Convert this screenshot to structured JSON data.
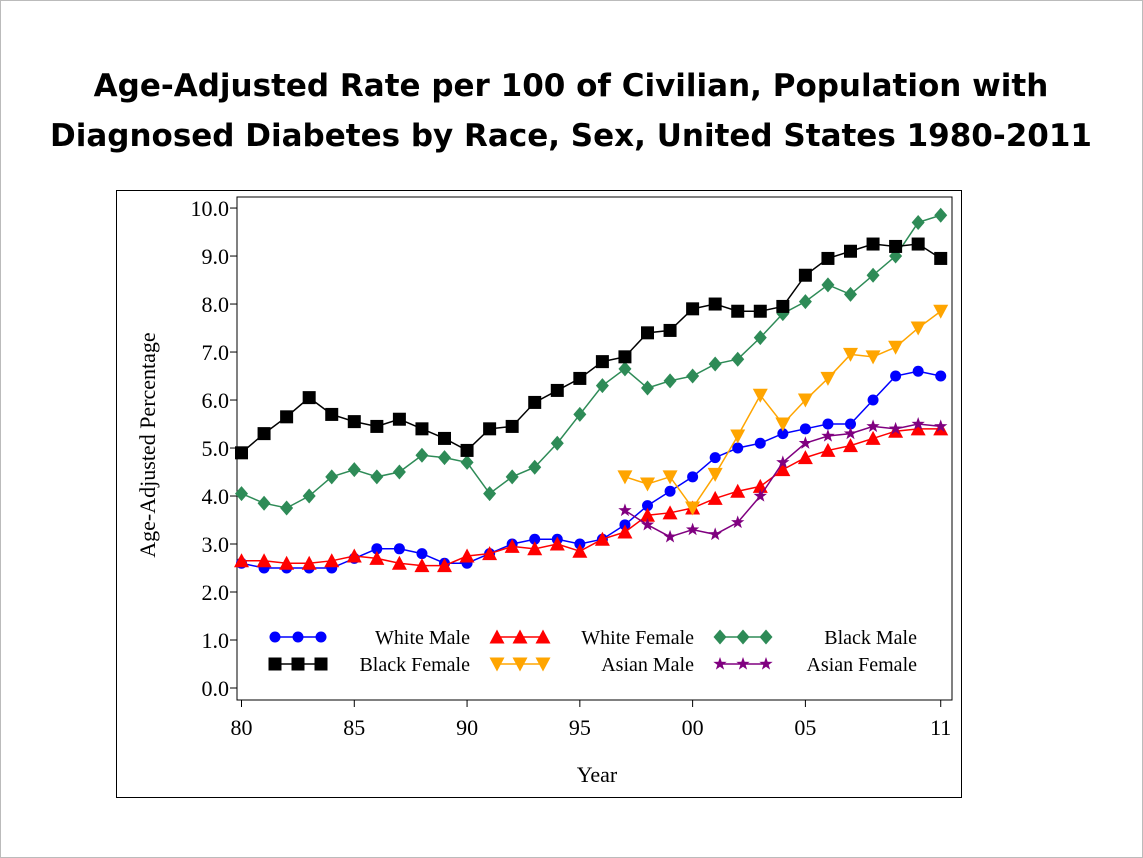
{
  "chart_data": {
    "type": "line",
    "title": [
      "Age-Adjusted Rate per 100 of Civilian, Population with",
      "Diagnosed Diabetes by Race, Sex, United States 1980-2011"
    ],
    "x_label": "Year",
    "y_label": "Age-Adjusted Percentage",
    "x": [
      1980,
      1981,
      1982,
      1983,
      1984,
      1985,
      1986,
      1987,
      1988,
      1989,
      1990,
      1991,
      1992,
      1993,
      1994,
      1995,
      1996,
      1997,
      1998,
      1999,
      2000,
      2001,
      2002,
      2003,
      2004,
      2005,
      2006,
      2007,
      2008,
      2009,
      2010,
      2011
    ],
    "series": [
      {
        "name": "White Male",
        "color": "#0000ff",
        "marker": "circle",
        "values": [
          2.6,
          2.5,
          2.5,
          2.5,
          2.5,
          2.7,
          2.9,
          2.9,
          2.8,
          2.6,
          2.6,
          2.8,
          3.0,
          3.1,
          3.1,
          3.0,
          3.1,
          3.4,
          3.8,
          4.1,
          4.4,
          4.8,
          5.0,
          5.1,
          5.3,
          5.4,
          5.5,
          5.5,
          6.0,
          6.5,
          6.6,
          6.5
        ]
      },
      {
        "name": "White Female",
        "color": "#ff0000",
        "marker": "triangle-up",
        "values": [
          2.65,
          2.65,
          2.6,
          2.6,
          2.65,
          2.75,
          2.7,
          2.6,
          2.55,
          2.55,
          2.75,
          2.8,
          2.95,
          2.9,
          3.0,
          2.85,
          3.1,
          3.25,
          3.6,
          3.65,
          3.75,
          3.95,
          4.1,
          4.2,
          4.55,
          4.8,
          4.95,
          5.05,
          5.2,
          5.35,
          5.4,
          5.4
        ]
      },
      {
        "name": "Black Male",
        "color": "#2e8b57",
        "marker": "diamond",
        "values": [
          4.05,
          3.85,
          3.75,
          4.0,
          4.4,
          4.55,
          4.4,
          4.5,
          4.85,
          4.8,
          4.7,
          4.05,
          4.4,
          4.6,
          5.1,
          5.7,
          6.3,
          6.65,
          6.25,
          6.4,
          6.5,
          6.75,
          6.85,
          7.3,
          7.8,
          8.05,
          8.4,
          8.2,
          8.6,
          9.0,
          9.7,
          9.85
        ]
      },
      {
        "name": "Black Female",
        "color": "#000000",
        "marker": "square",
        "values": [
          4.9,
          5.3,
          5.65,
          6.05,
          5.7,
          5.55,
          5.45,
          5.6,
          5.4,
          5.2,
          4.95,
          5.4,
          5.45,
          5.95,
          6.2,
          6.45,
          6.8,
          6.9,
          7.4,
          7.45,
          7.9,
          8.0,
          7.85,
          7.85,
          7.95,
          8.6,
          8.95,
          9.1,
          9.25,
          9.2,
          9.25,
          8.95
        ]
      },
      {
        "name": "Asian Male",
        "color": "#ffa500",
        "marker": "triangle-down",
        "values": [
          null,
          null,
          null,
          null,
          null,
          null,
          null,
          null,
          null,
          null,
          null,
          null,
          null,
          null,
          null,
          null,
          null,
          4.4,
          4.25,
          4.4,
          3.75,
          4.45,
          5.25,
          6.1,
          5.5,
          6.0,
          6.45,
          6.95,
          6.9,
          7.1,
          7.5,
          7.85
        ]
      },
      {
        "name": "Asian Female",
        "color": "#800080",
        "marker": "star",
        "values": [
          null,
          null,
          null,
          null,
          null,
          null,
          null,
          null,
          null,
          null,
          null,
          null,
          null,
          null,
          null,
          null,
          null,
          3.7,
          3.4,
          3.15,
          3.3,
          3.2,
          3.45,
          4.0,
          4.7,
          5.1,
          5.25,
          5.3,
          5.45,
          5.4,
          5.5,
          5.45
        ]
      }
    ],
    "xlim": [
      1979.8,
      2011.5
    ],
    "ylim": [
      -0.25,
      10.23
    ],
    "xticks": [
      {
        "value": 1980,
        "label": "80"
      },
      {
        "value": 1985,
        "label": "85"
      },
      {
        "value": 1990,
        "label": "90"
      },
      {
        "value": 1995,
        "label": "95"
      },
      {
        "value": 2000,
        "label": "00"
      },
      {
        "value": 2005,
        "label": "05"
      },
      {
        "value": 2011,
        "label": "11"
      }
    ],
    "yticks": [
      {
        "value": 0,
        "label": "0.0"
      },
      {
        "value": 1,
        "label": "1.0"
      },
      {
        "value": 2,
        "label": "2.0"
      },
      {
        "value": 3,
        "label": "3.0"
      },
      {
        "value": 4,
        "label": "4.0"
      },
      {
        "value": 5,
        "label": "5.0"
      },
      {
        "value": 6,
        "label": "6.0"
      },
      {
        "value": 7,
        "label": "7.0"
      },
      {
        "value": 8,
        "label": "8.0"
      },
      {
        "value": 9,
        "label": "9.0"
      },
      {
        "value": 10,
        "label": "10.0"
      }
    ],
    "legend": "bottom"
  }
}
